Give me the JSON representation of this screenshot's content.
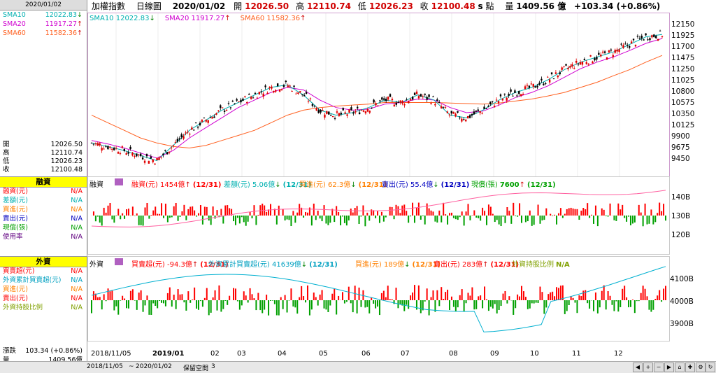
{
  "left": {
    "date_header": "2020/01/02",
    "sma": [
      {
        "label": "SMA10",
        "value": "12022.83",
        "arrow": "↓",
        "color": "#00b0b0"
      },
      {
        "label": "SMA20",
        "value": "11917.27",
        "arrow": "↑",
        "color": "#d000d0"
      },
      {
        "label": "SMA60",
        "value": "11582.36",
        "arrow": "↑",
        "color": "#ff6020"
      }
    ],
    "ohlc": [
      {
        "k": "開",
        "v": "12026.50"
      },
      {
        "k": "高",
        "v": "12110.74"
      },
      {
        "k": "低",
        "v": "12026.23"
      },
      {
        "k": "收",
        "v": "12100.48"
      }
    ],
    "margin_title": "融資",
    "margin_rows": [
      {
        "k": "融資(元)",
        "v": "N/A",
        "color": "#ff0000"
      },
      {
        "k": "差額(元)",
        "v": "N/A",
        "color": "#00b0b0"
      },
      {
        "k": "買進(元)",
        "v": "N/A",
        "color": "#ff8000"
      },
      {
        "k": "賣出(元)",
        "v": "N/A",
        "color": "#0000c0"
      },
      {
        "k": "現償(張)",
        "v": "N/A",
        "color": "#00a000"
      },
      {
        "k": "使用率",
        "v": "N/A",
        "color": "#600080"
      }
    ],
    "foreign_title": "外資",
    "foreign_rows": [
      {
        "k": "買賣超(元)",
        "v": "N/A",
        "color": "#ff0000"
      },
      {
        "k": "外資累計買賣超(元)",
        "v": "N/A",
        "color": "#00a0c0"
      },
      {
        "k": "買進(元)",
        "v": "N/A",
        "color": "#ff8000"
      },
      {
        "k": "賣出(元)",
        "v": "N/A",
        "color": "#ff0000"
      },
      {
        "k": "外資持股比例",
        "v": "N/A",
        "color": "#80a000"
      }
    ],
    "change": {
      "k": "漲跌",
      "v": "103.34 (+0.86%)"
    },
    "volume": {
      "k": "量",
      "v": "1409.56億"
    }
  },
  "topbar": {
    "name": "加權指數",
    "period": "日線圖",
    "date": "2020/01/02",
    "open_k": "開",
    "open_v": "12026.50",
    "high_k": "高",
    "high_v": "12110.74",
    "low_k": "低",
    "low_v": "12026.23",
    "close_k": "收",
    "close_v": "12100.48",
    "s": "s",
    "unit": "點",
    "vol_k": "量",
    "vol_v": "1409.56 億",
    "chg": "+103.34 (+0.86%)"
  },
  "price_legend": [
    {
      "t": "SMA10 12022.83",
      "a": "↓",
      "color": "#00b0b0"
    },
    {
      "t": "SMA20 11917.27",
      "a": "↑",
      "color": "#d000d0"
    },
    {
      "t": "SMA60 11582.36",
      "a": "↑",
      "color": "#ff6020"
    }
  ],
  "price_axis": [
    "12150",
    "11925",
    "11700",
    "11475",
    "11250",
    "11025",
    "10800",
    "10575",
    "10350",
    "10125",
    "9900",
    "9675",
    "9450"
  ],
  "margin_panel": {
    "title": "融資",
    "items": [
      {
        "t": "融資(元) 1454億",
        "a": "↑",
        "p": "(12/31)",
        "color": "#ff0000"
      },
      {
        "t": "差額(元) 5.06億",
        "a": "↓",
        "p": "(12/31)",
        "color": "#00b0b0"
      },
      {
        "t": "買進(元) 62.3億",
        "a": "↓",
        "p": "(12/31)",
        "color": "#ff8000"
      },
      {
        "t": "賣出(元) 55.4億",
        "a": "↓",
        "p": "(12/31)",
        "color": "#0000c0"
      },
      {
        "t": "現償(張)",
        "v": "7600",
        "a": "↑",
        "p": "(12/31)",
        "color": "#00a000"
      }
    ],
    "axis": [
      "140B",
      "130B",
      "120B"
    ]
  },
  "foreign_panel": {
    "title": "外資",
    "items": [
      {
        "t": "買賣超(元) -94.3億",
        "a": "↑",
        "p": "(12/31)",
        "color": "#ff0000"
      },
      {
        "t": "外資累計買賣超(元) 41639億",
        "a": "↓",
        "p": "(12/31)",
        "color": "#00a0c0"
      },
      {
        "t": "買進(元) 189億",
        "a": "↓",
        "p": "(12/31)",
        "color": "#ff8000"
      },
      {
        "t": "賣出(元) 283億",
        "a": "↑",
        "p": "(12/31)",
        "color": "#ff0000"
      },
      {
        "t": "外資持股比例",
        "v": "N/A",
        "color": "#80a000"
      }
    ],
    "axis": [
      "4100B",
      "4000B",
      "3900B"
    ]
  },
  "x_axis": [
    "2018/11/05",
    "2019/01",
    "02",
    "03",
    "04",
    "05",
    "06",
    "07",
    "08",
    "09",
    "10",
    "11",
    "12"
  ],
  "bottom_bar": {
    "from": "2018/11/05",
    "tilde": "~",
    "to": "2020/01/02",
    "keep_label": "保留空間",
    "keep_value": "3"
  },
  "chart_data": {
    "type": "candlestick",
    "title": "加權指數 日線圖",
    "ylim": [
      9300,
      12250
    ],
    "series": [
      {
        "name": "SMA10",
        "values": [
          9850,
          9780,
          9700,
          9600,
          9500,
          9800,
          10100,
          10300,
          10500,
          10650,
          10800,
          10950,
          11000,
          10800,
          10500,
          10400,
          10450,
          10550,
          10700,
          10650,
          10800,
          10700,
          10400,
          10350,
          10500,
          10700,
          10850,
          10950,
          11100,
          11300,
          11450,
          11550,
          11650,
          11800,
          11950,
          12000
        ]
      },
      {
        "name": "SMA20",
        "values": [
          9900,
          9830,
          9750,
          9650,
          9550,
          9700,
          9950,
          10150,
          10350,
          10550,
          10700,
          10850,
          10950,
          10900,
          10700,
          10550,
          10500,
          10520,
          10620,
          10650,
          10720,
          10700,
          10550,
          10450,
          10480,
          10600,
          10750,
          10850,
          10980,
          11150,
          11320,
          11450,
          11550,
          11680,
          11820,
          11917
        ]
      },
      {
        "name": "SMA60",
        "values": [
          10400,
          10250,
          10100,
          9950,
          9850,
          9780,
          9750,
          9800,
          9900,
          10000,
          10100,
          10250,
          10400,
          10500,
          10550,
          10580,
          10600,
          10620,
          10650,
          10650,
          10650,
          10650,
          10640,
          10630,
          10620,
          10640,
          10680,
          10720,
          10780,
          10850,
          10950,
          11050,
          11180,
          11300,
          11450,
          11582
        ]
      }
    ]
  }
}
